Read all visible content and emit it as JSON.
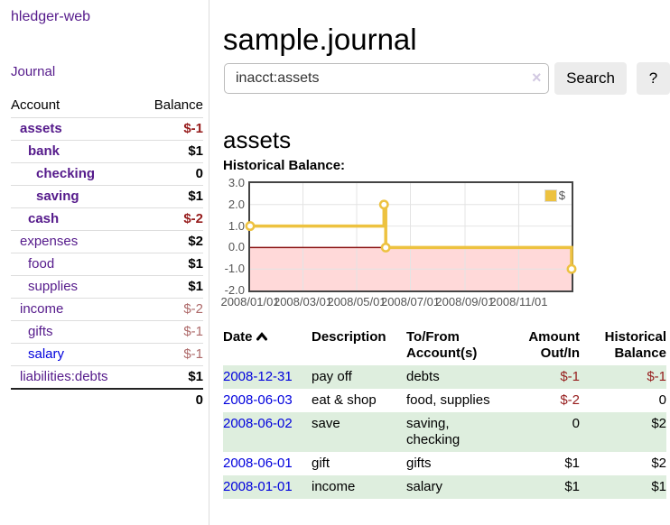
{
  "colors": {
    "link_purple": "#551a8b",
    "link_blue": "#0000dd",
    "negative_strong": "#961c1c",
    "negative_soft": "#ae6a6a",
    "row_green": "#deeede",
    "series_gold": "#edc240",
    "chart_negative_region": "#ffd9d9",
    "chart_zero_line": "#8b1414",
    "chart_grid": "#e4e4e4",
    "axis_text": "#545454"
  },
  "sidebar": {
    "app_title": "hledger-web",
    "journal_link": "Journal",
    "accounts": {
      "headers": {
        "account": "Account",
        "balance": "Balance"
      },
      "rows": [
        {
          "name": "assets",
          "indent": 1,
          "bold": true,
          "balance": "$-1",
          "negative": true,
          "link": "purple"
        },
        {
          "name": "bank",
          "indent": 2,
          "bold": true,
          "balance": "$1",
          "negative": false,
          "link": "purple"
        },
        {
          "name": "checking",
          "indent": 3,
          "bold": true,
          "balance": "0",
          "negative": false,
          "link": "purple"
        },
        {
          "name": "saving",
          "indent": 3,
          "bold": true,
          "balance": "$1",
          "negative": false,
          "link": "purple"
        },
        {
          "name": "cash",
          "indent": 2,
          "bold": true,
          "balance": "$-2",
          "negative": true,
          "link": "purple"
        },
        {
          "name": "expenses",
          "indent": 1,
          "bold": false,
          "balance": "$2",
          "negative": false,
          "link": "purple"
        },
        {
          "name": "food",
          "indent": 2,
          "bold": false,
          "balance": "$1",
          "negative": false,
          "link": "purple"
        },
        {
          "name": "supplies",
          "indent": 2,
          "bold": false,
          "balance": "$1",
          "negative": false,
          "link": "purple"
        },
        {
          "name": "income",
          "indent": 1,
          "bold": false,
          "balance": "$-2",
          "negative": true,
          "link": "purple"
        },
        {
          "name": "gifts",
          "indent": 2,
          "bold": false,
          "balance": "$-1",
          "negative": true,
          "link": "purple"
        },
        {
          "name": "salary",
          "indent": 2,
          "bold": false,
          "balance": "$-1",
          "negative": true,
          "link": "blue"
        },
        {
          "name": "liabilities:debts",
          "indent": 1,
          "bold": false,
          "balance": "$1",
          "negative": false,
          "link": "purple"
        }
      ],
      "total": "0"
    }
  },
  "header": {
    "title": "sample.journal"
  },
  "search": {
    "value": "inacct:assets",
    "clear_icon": "×",
    "button_label": "Search",
    "help_label": "?"
  },
  "main": {
    "account_heading": "assets",
    "chart_label": "Historical Balance:"
  },
  "chart_data": {
    "type": "line",
    "steps": true,
    "title": "Historical Balance:",
    "xlim": [
      "2008-01-01",
      "2008-12-31"
    ],
    "ylim": [
      -2,
      3
    ],
    "y_ticks": [
      3,
      2,
      1,
      0,
      -1,
      -2
    ],
    "x_ticks": [
      {
        "date": "2008-01-01",
        "label": "2008/01/01"
      },
      {
        "date": "2008-03-01",
        "label": "2008/03/01"
      },
      {
        "date": "2008-05-01",
        "label": "2008/05/01"
      },
      {
        "date": "2008-07-01",
        "label": "2008/07/01"
      },
      {
        "date": "2008-09-01",
        "label": "2008/09/01"
      },
      {
        "date": "2008-11-01",
        "label": "2008/11/01"
      }
    ],
    "series": [
      {
        "name": "$",
        "color": "#edc240",
        "points": [
          [
            "2008-01-01",
            1
          ],
          [
            "2008-06-01",
            2
          ],
          [
            "2008-06-03",
            0
          ],
          [
            "2008-12-31",
            -1
          ]
        ]
      }
    ],
    "legend": {
      "label": "$",
      "position": "top-right"
    },
    "grid": true,
    "negative_region_color": "#ffd9d9",
    "zero_line_color": "#8b1414",
    "grid_color": "#e4e4e4"
  },
  "register": {
    "headers": [
      "Date",
      "Description",
      "To/From Account(s)",
      "Amount Out/In",
      "Historical Balance"
    ],
    "sort": {
      "column": "Date",
      "direction": "ascending"
    },
    "rows": [
      {
        "date": "2008-12-31",
        "description": "pay off",
        "accounts": "debts",
        "amount": "$-1",
        "amount_negative": true,
        "balance": "$-1",
        "balance_negative": true
      },
      {
        "date": "2008-06-03",
        "description": "eat & shop",
        "accounts": "food, supplies",
        "amount": "$-2",
        "amount_negative": true,
        "balance": "0",
        "balance_negative": false
      },
      {
        "date": "2008-06-02",
        "description": "save",
        "accounts": "saving, checking",
        "amount": "0",
        "amount_negative": false,
        "balance": "$2",
        "balance_negative": false
      },
      {
        "date": "2008-06-01",
        "description": "gift",
        "accounts": "gifts",
        "amount": "$1",
        "amount_negative": false,
        "balance": "$2",
        "balance_negative": false
      },
      {
        "date": "2008-01-01",
        "description": "income",
        "accounts": "salary",
        "amount": "$1",
        "amount_negative": false,
        "balance": "$1",
        "balance_negative": false
      }
    ]
  }
}
